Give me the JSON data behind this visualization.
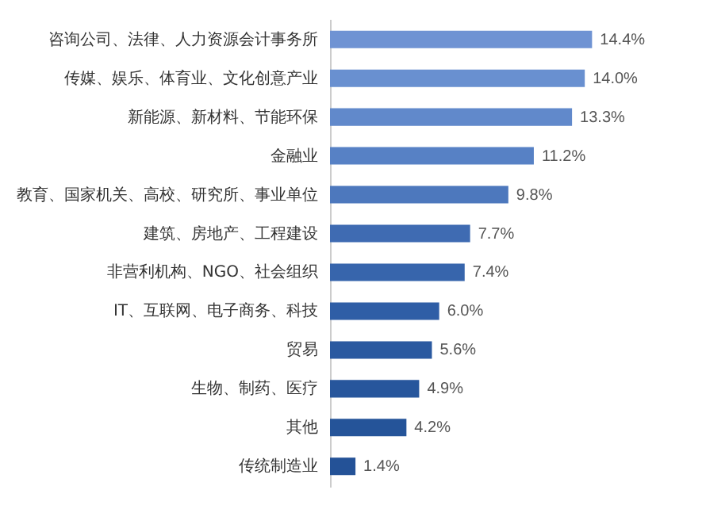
{
  "chart_data": {
    "type": "bar",
    "orientation": "horizontal",
    "value_labels": [
      "14.4%",
      "14.0%",
      "13.3%",
      "11.2%",
      "9.8%",
      "7.7%",
      "7.4%",
      "6.0%",
      "5.6%",
      "4.9%",
      "4.2%",
      "1.4%"
    ],
    "categories": [
      "咨询公司、法律、人力资源会计事务所",
      "传媒、娱乐、体育业、文化创意产业",
      "新能源、新材料、节能环保",
      "金融业",
      "教育、国家机关、高校、研究所、事业单位",
      "建筑、房地产、工程建设",
      "非营利机构、NGO、社会组织",
      "IT、互联网、电子商务、科技",
      "贸易",
      "生物、制药、医疗",
      "其他",
      "传统制造业"
    ],
    "values": [
      14.4,
      14.0,
      13.3,
      11.2,
      9.8,
      7.7,
      7.4,
      6.0,
      5.6,
      4.9,
      4.2,
      1.4
    ],
    "colors": [
      "#6f93d3",
      "#6990d0",
      "#6189cb",
      "#5781c5",
      "#4d78bd",
      "#3f6bb2",
      "#3765ac",
      "#2f5ea6",
      "#2a59a0",
      "#27569c",
      "#255499",
      "#245297"
    ]
  }
}
